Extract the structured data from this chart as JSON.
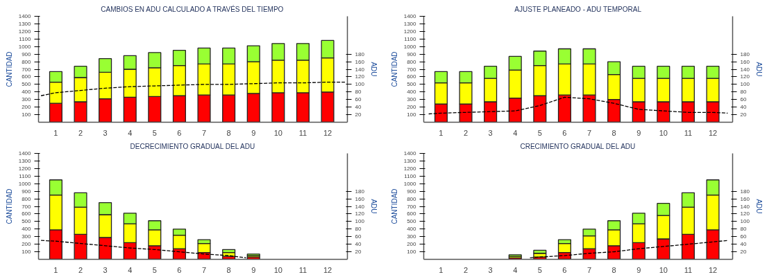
{
  "chart_data": [
    {
      "type": "bar",
      "title": "CAMBIOS EN ADU CALCULADO A TRAVÉS DEL TIEMPO",
      "ylabel": "CANTIDAD",
      "y2label": "ADU",
      "stacked": true,
      "x": [
        1,
        2,
        3,
        4,
        5,
        6,
        7,
        8,
        9,
        10,
        11,
        12
      ],
      "xlim": [
        0.3,
        12.8
      ],
      "xticks": [
        1,
        2,
        3,
        4,
        5,
        6,
        7,
        8,
        9,
        10,
        11,
        12
      ],
      "ylim": [
        0,
        1400
      ],
      "yticks": [
        100,
        200,
        300,
        400,
        500,
        600,
        700,
        800,
        900,
        1000,
        1100,
        1200,
        1300,
        1400
      ],
      "y2lim": [
        0,
        280
      ],
      "y2ticks": [
        20,
        40,
        60,
        80,
        100,
        120,
        140,
        160,
        180
      ],
      "series": [
        {
          "color": "#ff0000",
          "values": [
            250,
            270,
            310,
            330,
            340,
            350,
            360,
            360,
            380,
            390,
            390,
            400
          ]
        },
        {
          "color": "#ffff00",
          "values": [
            280,
            320,
            350,
            370,
            380,
            400,
            410,
            410,
            420,
            430,
            430,
            450
          ]
        },
        {
          "color": "#99ff33",
          "values": [
            140,
            150,
            180,
            180,
            200,
            200,
            210,
            210,
            210,
            220,
            220,
            230
          ]
        },
        {
          "type": "line",
          "axis": "y2",
          "color": "#000000",
          "line_style": "dashed",
          "x": [
            0.4,
            1,
            2,
            3,
            4,
            5,
            6,
            7,
            8,
            9,
            10,
            11,
            12,
            12.7
          ],
          "values": [
            70,
            78,
            84,
            90,
            94,
            96,
            98,
            100,
            100,
            102,
            104,
            104,
            106,
            106
          ]
        }
      ]
    },
    {
      "type": "bar",
      "title": "AJUSTE PLANEADO - ADU TEMPORAL",
      "ylabel": "CANTIDAD",
      "y2label": "ADU",
      "stacked": true,
      "x": [
        1,
        2,
        3,
        4,
        5,
        6,
        7,
        8,
        9,
        10,
        11,
        12
      ],
      "xlim": [
        0.3,
        12.8
      ],
      "xticks": [
        1,
        2,
        3,
        4,
        5,
        6,
        7,
        8,
        9,
        10,
        11,
        12
      ],
      "ylim": [
        0,
        1400
      ],
      "yticks": [
        100,
        200,
        300,
        400,
        500,
        600,
        700,
        800,
        900,
        1000,
        1100,
        1200,
        1300,
        1400
      ],
      "y2lim": [
        0,
        280
      ],
      "y2ticks": [
        20,
        40,
        60,
        80,
        100,
        120,
        140,
        160,
        180
      ],
      "series": [
        {
          "color": "#ff0000",
          "values": [
            240,
            240,
            270,
            320,
            350,
            360,
            360,
            300,
            270,
            270,
            270,
            270
          ]
        },
        {
          "color": "#ffff00",
          "values": [
            280,
            280,
            310,
            370,
            400,
            410,
            410,
            330,
            310,
            310,
            310,
            310
          ]
        },
        {
          "color": "#99ff33",
          "values": [
            150,
            150,
            160,
            180,
            190,
            200,
            200,
            170,
            160,
            160,
            160,
            160
          ]
        },
        {
          "type": "line",
          "axis": "y2",
          "color": "#000000",
          "line_style": "dashed",
          "x": [
            0.5,
            1,
            2,
            3,
            4,
            5,
            6,
            7,
            8,
            9,
            10,
            11,
            12,
            12.6
          ],
          "values": [
            22,
            24,
            26,
            28,
            30,
            44,
            66,
            62,
            50,
            34,
            30,
            26,
            26,
            24
          ]
        }
      ]
    },
    {
      "type": "bar",
      "title": "DECRECIMIENTO GRADUAL DEL ADU",
      "ylabel": "CANTIDAD",
      "y2label": "ADU",
      "stacked": true,
      "x": [
        1,
        2,
        3,
        4,
        5,
        6,
        7,
        8,
        9
      ],
      "xlim": [
        0.3,
        12.8
      ],
      "xticks": [
        1,
        2,
        3,
        4,
        5,
        6,
        7,
        8,
        9,
        10,
        11,
        12
      ],
      "ylim": [
        0,
        1400
      ],
      "yticks": [
        100,
        200,
        300,
        400,
        500,
        600,
        700,
        800,
        900,
        1000,
        1100,
        1200,
        1300,
        1400
      ],
      "y2lim": [
        0,
        280
      ],
      "y2ticks": [
        20,
        40,
        60,
        80,
        100,
        120,
        140,
        160,
        180
      ],
      "series": [
        {
          "color": "#ff0000",
          "values": [
            390,
            330,
            290,
            220,
            180,
            140,
            90,
            40,
            30
          ]
        },
        {
          "color": "#ffff00",
          "values": [
            460,
            360,
            300,
            250,
            210,
            180,
            120,
            50,
            20
          ]
        },
        {
          "color": "#99ff33",
          "values": [
            200,
            190,
            160,
            140,
            120,
            80,
            50,
            40,
            20
          ]
        },
        {
          "type": "line",
          "axis": "y2",
          "color": "#000000",
          "line_style": "dashed",
          "x": [
            0.4,
            1,
            2,
            3,
            4,
            5,
            6,
            7,
            8,
            8.7
          ],
          "values": [
            50,
            48,
            42,
            36,
            30,
            26,
            20,
            14,
            10,
            4
          ]
        }
      ]
    },
    {
      "type": "bar",
      "title": "CRECIMIENTO GRADUAL DEL ADU",
      "ylabel": "CANTIDAD",
      "y2label": "ADU",
      "stacked": true,
      "x": [
        4,
        5,
        6,
        7,
        8,
        9,
        10,
        11,
        12
      ],
      "xlim": [
        0.3,
        12.8
      ],
      "xticks": [
        1,
        2,
        3,
        4,
        5,
        6,
        7,
        8,
        9,
        10,
        11,
        12
      ],
      "ylim": [
        0,
        1400
      ],
      "yticks": [
        100,
        200,
        300,
        400,
        500,
        600,
        700,
        800,
        900,
        1000,
        1100,
        1200,
        1300,
        1400
      ],
      "y2lim": [
        0,
        280
      ],
      "y2ticks": [
        20,
        40,
        60,
        80,
        100,
        120,
        140,
        160,
        180
      ],
      "series": [
        {
          "color": "#ff0000",
          "values": [
            20,
            30,
            90,
            140,
            180,
            220,
            270,
            330,
            390
          ]
        },
        {
          "color": "#ffff00",
          "values": [
            20,
            50,
            120,
            170,
            210,
            250,
            310,
            360,
            460
          ]
        },
        {
          "color": "#99ff33",
          "values": [
            20,
            40,
            50,
            90,
            120,
            140,
            160,
            190,
            200
          ]
        },
        {
          "type": "line",
          "axis": "y2",
          "color": "#000000",
          "line_style": "dashed",
          "x": [
            4.6,
            5,
            6,
            7,
            8,
            9,
            10,
            11,
            12,
            12.6
          ],
          "values": [
            4,
            6,
            10,
            16,
            20,
            28,
            34,
            40,
            46,
            50
          ]
        }
      ]
    }
  ]
}
